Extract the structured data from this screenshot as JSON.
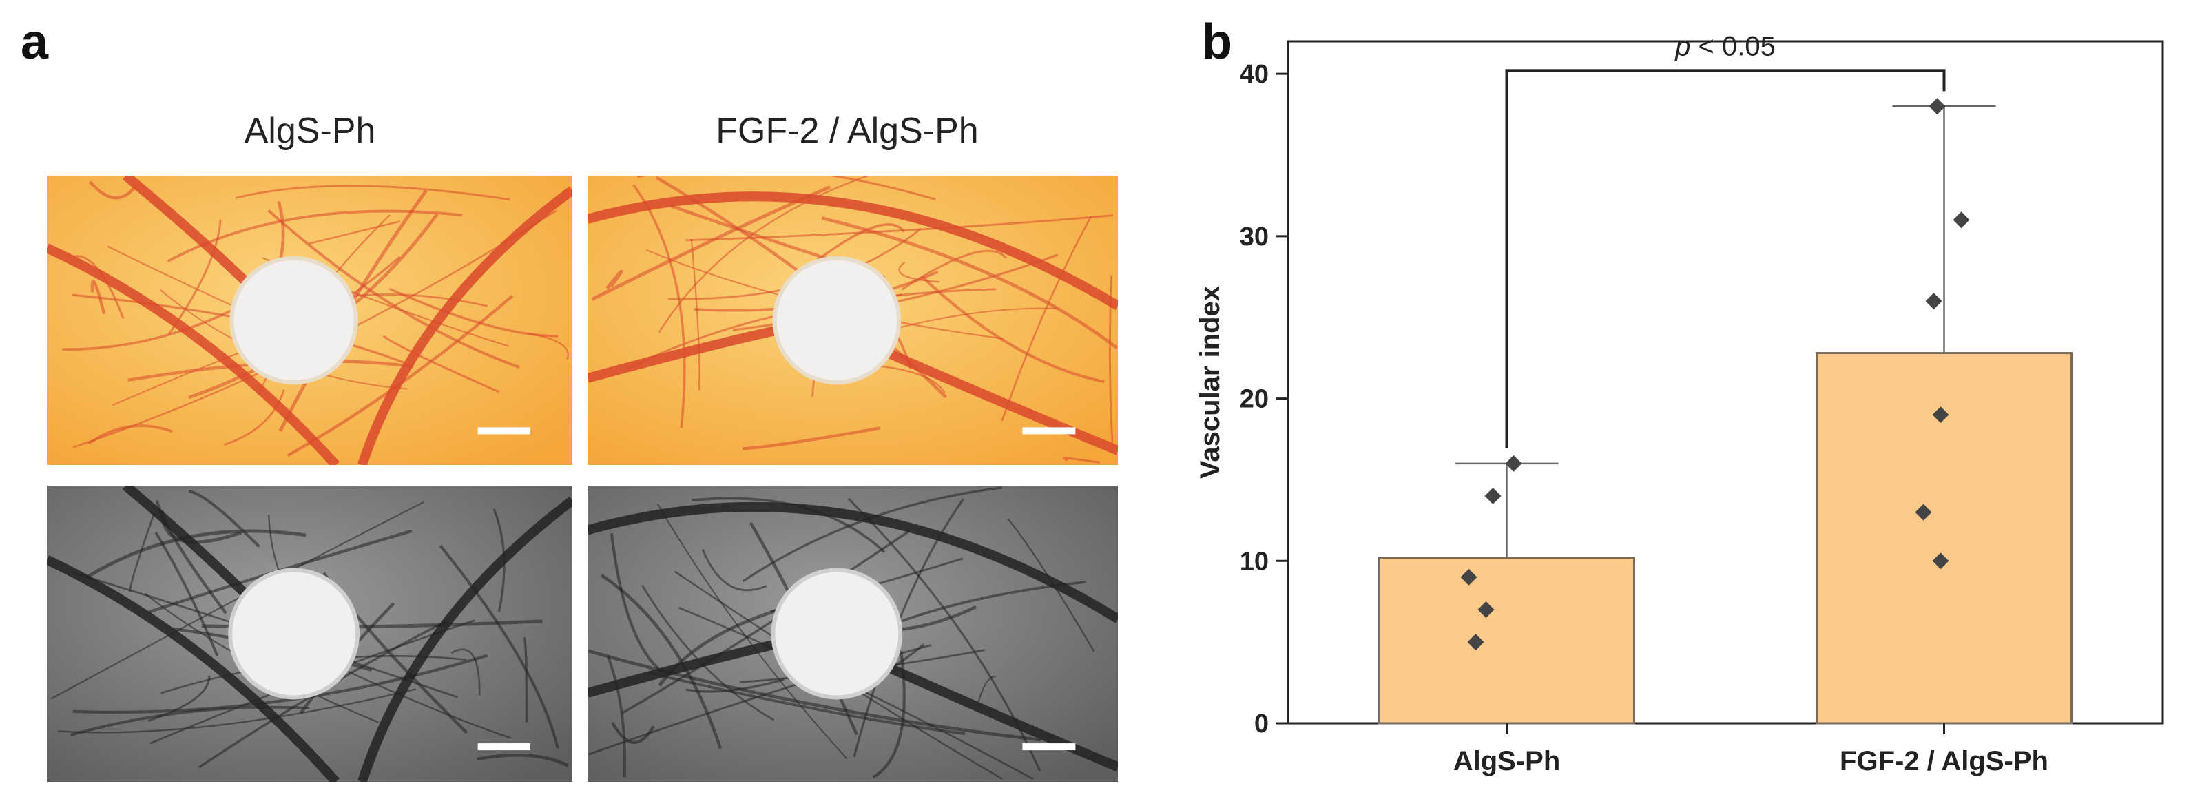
{
  "panel_a": {
    "letter": "a",
    "column_titles": [
      "AlgS-Ph",
      "FGF-2 / AlgS-Ph"
    ],
    "photos": [
      {
        "name": "photo-algs-ph-color",
        "mode": "color"
      },
      {
        "name": "photo-fgf2-algs-ph-color",
        "mode": "color"
      },
      {
        "name": "photo-algs-ph-grayscale",
        "mode": "grayscale"
      },
      {
        "name": "photo-fgf2-algs-ph-grayscale",
        "mode": "grayscale"
      }
    ],
    "colors": {
      "color_bg_light": "#fbd37a",
      "color_bg_dark": "#f4a63a",
      "color_vessel": "#d9482b",
      "gray_bg_light": "#9a9a9a",
      "gray_bg_dark": "#5e5e5e",
      "gray_vessel": "#222222",
      "disk": "#f2f0ee",
      "scalebar": "#ffffff"
    }
  },
  "panel_b": {
    "letter": "b"
  },
  "chart_data": {
    "type": "bar",
    "categories": [
      "AlgS-Ph",
      "FGF-2 / AlgS-Ph"
    ],
    "values": [
      10.2,
      22.8
    ],
    "error_upper": [
      16.0,
      38.0
    ],
    "points": [
      [
        16,
        14,
        9,
        7,
        5
      ],
      [
        38,
        31,
        26,
        19,
        13,
        10
      ]
    ],
    "ylabel": "Vascular index",
    "xlabel": "",
    "ylim": [
      0,
      42
    ],
    "yticks": [
      0,
      10,
      20,
      30,
      40
    ],
    "significance": {
      "italic": "p",
      "text": " < 0.05"
    },
    "colors": {
      "bar_fill": "#fbc98a",
      "bar_stroke": "#7a6a5a",
      "point": "#444444",
      "axis": "#222222"
    }
  }
}
